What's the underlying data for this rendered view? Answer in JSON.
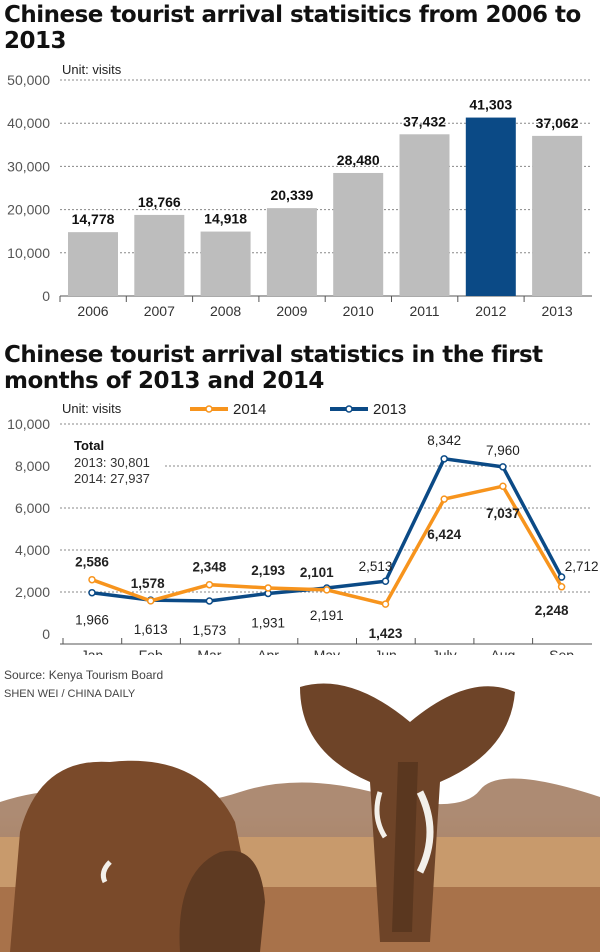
{
  "chart_data": [
    {
      "type": "bar",
      "title": "Chinese tourist arrival statisitics from 2006 to 2013",
      "unit": "Unit: visits",
      "categories": [
        "2006",
        "2007",
        "2008",
        "2009",
        "2010",
        "2011",
        "2012",
        "2013"
      ],
      "values": [
        14778,
        18766,
        14918,
        20339,
        28480,
        37432,
        41303,
        37062
      ],
      "value_labels": [
        "14,778",
        "18,766",
        "14,918",
        "20,339",
        "28,480",
        "37,432",
        "41,303",
        "37,062"
      ],
      "ylim": [
        0,
        50000
      ],
      "yticks": [
        "0",
        "10,000",
        "20,000",
        "30,000",
        "40,000",
        "50,000"
      ],
      "grid": true,
      "highlight": "2012",
      "colors": {
        "bar": "#bdbdbd",
        "highlight": "#0b4a86"
      }
    },
    {
      "type": "line",
      "title": "Chinese tourist arrival statistics in the first months of 2013 and 2014",
      "unit": "Unit: visits",
      "categories": [
        "Jan",
        "Feb",
        "Mar",
        "Apr",
        "May",
        "Jun",
        "July",
        "Aug",
        "Sep"
      ],
      "series": [
        {
          "name": "2014",
          "color": "#f7941d",
          "values": [
            2586,
            1578,
            2348,
            2193,
            2101,
            1423,
            6424,
            7037,
            2248
          ],
          "labels": [
            "2,586",
            "1,578",
            "2,348",
            "2,193",
            "2,101",
            "1,423",
            "6,424",
            "7,037",
            "2,248"
          ]
        },
        {
          "name": "2013",
          "color": "#0b4a86",
          "values": [
            1966,
            1613,
            1573,
            1931,
            2191,
            2513,
            8342,
            7960,
            2712
          ],
          "labels": [
            "1,966",
            "1,613",
            "1,573",
            "1,931",
            "2,191",
            "2,513",
            "8,342",
            "7,960",
            "2,712"
          ]
        }
      ],
      "ylim": [
        0,
        10000
      ],
      "yticks": [
        "0",
        "2,000",
        "4,000",
        "6,000",
        "8,000",
        "10,000"
      ],
      "grid": true,
      "legend": "top",
      "annotation": {
        "title": "Total",
        "lines": [
          "2013: 30,801",
          "2014: 27,937"
        ]
      }
    }
  ],
  "source": "Source: Kenya Tourism Board",
  "credit": "SHEN WEI / CHINA DAILY"
}
